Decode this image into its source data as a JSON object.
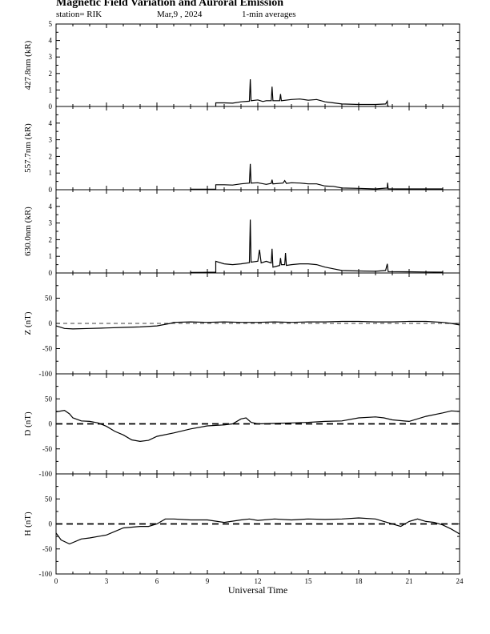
{
  "header": {
    "title": "Magnetic Field Variation and Auroral Emission",
    "station": "station= RIK",
    "date": "Mar,9  , 2024",
    "averages": "1-min averages"
  },
  "chart_data": {
    "type": "line",
    "xlabel": "Universal Time",
    "xlim": [
      0,
      24
    ],
    "xticks": [
      0,
      3,
      6,
      9,
      12,
      15,
      18,
      21,
      24
    ],
    "panels": [
      {
        "ylabel": "427.8nm (kR)",
        "ylim": [
          0,
          5
        ],
        "yticks": [
          0,
          1,
          2,
          3,
          4,
          5
        ],
        "baseline": 0,
        "baseline_style": "none",
        "series": [
          [
            9.5,
            0.0
          ],
          [
            9.5,
            0.22
          ],
          [
            10.0,
            0.22
          ],
          [
            10.5,
            0.2
          ],
          [
            11.0,
            0.28
          ],
          [
            11.5,
            0.32
          ],
          [
            11.55,
            1.65
          ],
          [
            11.6,
            0.35
          ],
          [
            12.0,
            0.4
          ],
          [
            12.3,
            0.3
          ],
          [
            12.5,
            0.35
          ],
          [
            12.8,
            0.35
          ],
          [
            12.85,
            1.2
          ],
          [
            12.9,
            0.35
          ],
          [
            13.3,
            0.35
          ],
          [
            13.35,
            0.75
          ],
          [
            13.4,
            0.35
          ],
          [
            14.0,
            0.42
          ],
          [
            14.5,
            0.45
          ],
          [
            15.0,
            0.38
          ],
          [
            15.5,
            0.42
          ],
          [
            16.0,
            0.28
          ],
          [
            16.5,
            0.22
          ],
          [
            17.0,
            0.15
          ],
          [
            18.0,
            0.12
          ],
          [
            19.0,
            0.12
          ],
          [
            19.6,
            0.15
          ],
          [
            19.7,
            0.32
          ],
          [
            19.72,
            0.05
          ],
          [
            19.8,
            0.0
          ]
        ]
      },
      {
        "ylabel": "557.7nm (kR)",
        "ylim": [
          0,
          5
        ],
        "yticks": [
          0,
          1,
          2,
          3,
          4
        ],
        "baseline": 0,
        "baseline_style": "none",
        "series": [
          [
            8.0,
            0.03
          ],
          [
            9.5,
            0.04
          ],
          [
            9.5,
            0.3
          ],
          [
            10.0,
            0.3
          ],
          [
            10.5,
            0.28
          ],
          [
            11.0,
            0.35
          ],
          [
            11.5,
            0.4
          ],
          [
            11.55,
            1.55
          ],
          [
            11.6,
            0.4
          ],
          [
            12.0,
            0.42
          ],
          [
            12.5,
            0.32
          ],
          [
            12.8,
            0.38
          ],
          [
            12.85,
            0.6
          ],
          [
            12.9,
            0.35
          ],
          [
            13.5,
            0.4
          ],
          [
            13.6,
            0.55
          ],
          [
            13.7,
            0.38
          ],
          [
            14.0,
            0.42
          ],
          [
            14.5,
            0.4
          ],
          [
            15.0,
            0.35
          ],
          [
            15.5,
            0.35
          ],
          [
            16.0,
            0.22
          ],
          [
            16.5,
            0.2
          ],
          [
            17.0,
            0.1
          ],
          [
            18.0,
            0.08
          ],
          [
            19.0,
            0.05
          ],
          [
            19.7,
            0.1
          ],
          [
            19.72,
            0.42
          ],
          [
            19.75,
            0.06
          ],
          [
            21.0,
            0.05
          ],
          [
            22.0,
            0.05
          ],
          [
            23.0,
            0.05
          ]
        ]
      },
      {
        "ylabel": "630.0nm (kR)",
        "ylim": [
          0,
          5
        ],
        "yticks": [
          0,
          1,
          2,
          3,
          4
        ],
        "baseline": 0,
        "baseline_style": "none",
        "series": [
          [
            8.0,
            0.03
          ],
          [
            9.5,
            0.05
          ],
          [
            9.5,
            0.7
          ],
          [
            10.0,
            0.55
          ],
          [
            10.5,
            0.5
          ],
          [
            11.0,
            0.55
          ],
          [
            11.5,
            0.62
          ],
          [
            11.55,
            3.2
          ],
          [
            11.6,
            0.65
          ],
          [
            12.0,
            0.7
          ],
          [
            12.1,
            1.4
          ],
          [
            12.2,
            0.6
          ],
          [
            12.5,
            0.7
          ],
          [
            12.8,
            0.6
          ],
          [
            12.85,
            1.45
          ],
          [
            12.9,
            0.35
          ],
          [
            13.3,
            0.45
          ],
          [
            13.35,
            0.9
          ],
          [
            13.4,
            0.5
          ],
          [
            13.6,
            0.5
          ],
          [
            13.65,
            1.2
          ],
          [
            13.7,
            0.45
          ],
          [
            14.0,
            0.5
          ],
          [
            14.5,
            0.55
          ],
          [
            15.0,
            0.55
          ],
          [
            15.5,
            0.5
          ],
          [
            16.0,
            0.35
          ],
          [
            16.5,
            0.25
          ],
          [
            17.0,
            0.15
          ],
          [
            18.0,
            0.12
          ],
          [
            19.0,
            0.1
          ],
          [
            19.6,
            0.15
          ],
          [
            19.7,
            0.55
          ],
          [
            19.75,
            0.08
          ],
          [
            21.0,
            0.07
          ],
          [
            22.0,
            0.06
          ],
          [
            23.0,
            0.05
          ]
        ]
      },
      {
        "ylabel": "Z (nT)",
        "ylim": [
          -100,
          100
        ],
        "yticks": [
          -100,
          -50,
          0,
          50
        ],
        "baseline": 0,
        "baseline_style": "thin-dashed",
        "series": [
          [
            0.0,
            -5
          ],
          [
            0.5,
            -10
          ],
          [
            1.0,
            -11
          ],
          [
            2.0,
            -10
          ],
          [
            3.0,
            -9
          ],
          [
            4.0,
            -8
          ],
          [
            5.0,
            -7
          ],
          [
            6.0,
            -5
          ],
          [
            6.8,
            0
          ],
          [
            7.0,
            2
          ],
          [
            8.0,
            3
          ],
          [
            9.0,
            2
          ],
          [
            10.0,
            3
          ],
          [
            11.0,
            2
          ],
          [
            12.0,
            2
          ],
          [
            13.0,
            3
          ],
          [
            14.0,
            2
          ],
          [
            15.0,
            3
          ],
          [
            16.0,
            3
          ],
          [
            17.0,
            4
          ],
          [
            18.0,
            4
          ],
          [
            19.0,
            3
          ],
          [
            20.0,
            3
          ],
          [
            21.0,
            4
          ],
          [
            22.0,
            4
          ],
          [
            23.0,
            2
          ],
          [
            23.5,
            0
          ],
          [
            24.0,
            -3
          ]
        ]
      },
      {
        "ylabel": "D (nT)",
        "ylim": [
          -100,
          100
        ],
        "yticks": [
          -100,
          -50,
          0,
          50
        ],
        "baseline": 0,
        "baseline_style": "thick-dashed",
        "series": [
          [
            0.0,
            24
          ],
          [
            0.5,
            27
          ],
          [
            0.8,
            20
          ],
          [
            1.0,
            12
          ],
          [
            1.5,
            6
          ],
          [
            2.0,
            5
          ],
          [
            2.5,
            2
          ],
          [
            3.0,
            -5
          ],
          [
            3.5,
            -15
          ],
          [
            4.0,
            -22
          ],
          [
            4.5,
            -32
          ],
          [
            5.0,
            -35
          ],
          [
            5.5,
            -33
          ],
          [
            6.0,
            -25
          ],
          [
            7.0,
            -18
          ],
          [
            8.0,
            -10
          ],
          [
            9.0,
            -4
          ],
          [
            10.0,
            -2
          ],
          [
            10.5,
            0
          ],
          [
            11.0,
            10
          ],
          [
            11.3,
            12
          ],
          [
            11.6,
            3
          ],
          [
            12.0,
            0
          ],
          [
            13.0,
            1
          ],
          [
            14.0,
            2
          ],
          [
            15.0,
            3
          ],
          [
            16.0,
            5
          ],
          [
            17.0,
            6
          ],
          [
            18.0,
            12
          ],
          [
            19.0,
            14
          ],
          [
            19.5,
            12
          ],
          [
            20.0,
            8
          ],
          [
            21.0,
            5
          ],
          [
            22.0,
            15
          ],
          [
            23.0,
            22
          ],
          [
            23.5,
            26
          ],
          [
            24.0,
            25
          ]
        ]
      },
      {
        "ylabel": "H (nT)",
        "ylim": [
          -100,
          100
        ],
        "yticks": [
          -100,
          -50,
          0,
          50
        ],
        "baseline": 0,
        "baseline_style": "thick-dashed",
        "series": [
          [
            0.0,
            -18
          ],
          [
            0.3,
            -32
          ],
          [
            0.8,
            -40
          ],
          [
            1.5,
            -30
          ],
          [
            2.0,
            -28
          ],
          [
            3.0,
            -22
          ],
          [
            4.0,
            -8
          ],
          [
            5.0,
            -5
          ],
          [
            5.5,
            -5
          ],
          [
            6.0,
            0
          ],
          [
            6.5,
            10
          ],
          [
            7.0,
            10
          ],
          [
            8.0,
            8
          ],
          [
            9.0,
            8
          ],
          [
            10.0,
            3
          ],
          [
            11.0,
            8
          ],
          [
            11.5,
            10
          ],
          [
            12.0,
            7
          ],
          [
            13.0,
            10
          ],
          [
            14.0,
            8
          ],
          [
            15.0,
            10
          ],
          [
            16.0,
            9
          ],
          [
            17.0,
            10
          ],
          [
            18.0,
            12
          ],
          [
            19.0,
            10
          ],
          [
            19.5,
            5
          ],
          [
            20.0,
            0
          ],
          [
            20.5,
            -5
          ],
          [
            21.0,
            5
          ],
          [
            21.5,
            10
          ],
          [
            22.0,
            5
          ],
          [
            22.5,
            3
          ],
          [
            23.0,
            -2
          ],
          [
            23.5,
            -10
          ],
          [
            24.0,
            -20
          ]
        ]
      }
    ]
  }
}
